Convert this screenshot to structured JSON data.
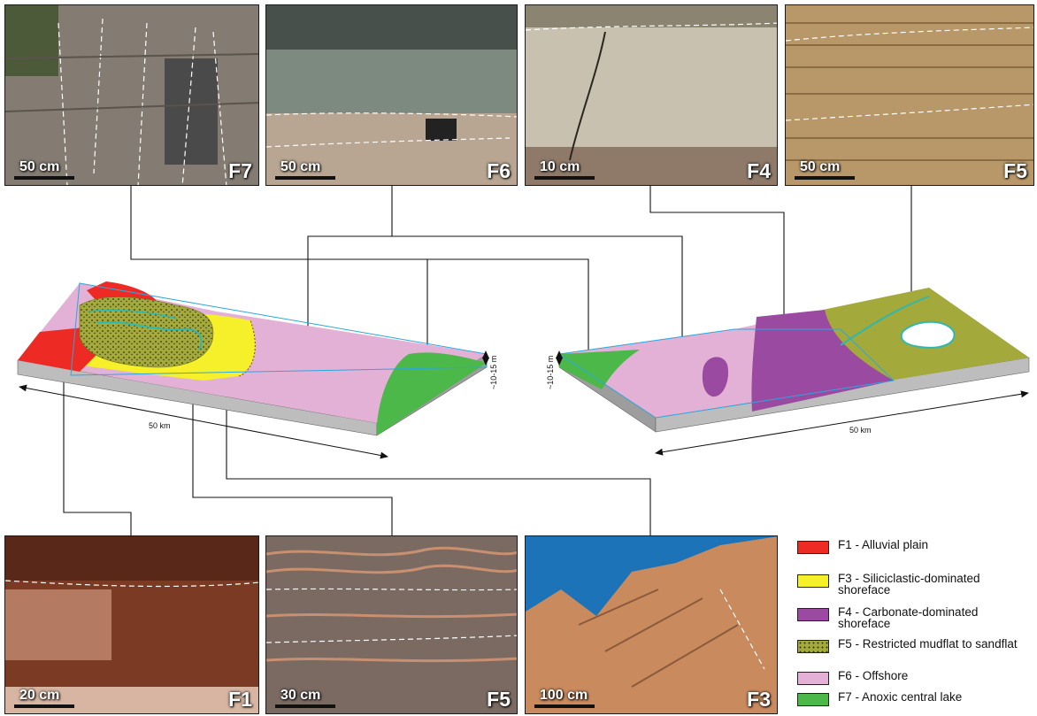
{
  "photos_top": [
    {
      "id": "F7",
      "scale": "50 cm"
    },
    {
      "id": "F6",
      "scale": "50 cm"
    },
    {
      "id": "F4",
      "scale": "10 cm"
    },
    {
      "id": "F5",
      "scale": "50 cm"
    }
  ],
  "photos_bottom": [
    {
      "id": "F1",
      "scale": "20 cm"
    },
    {
      "id": "F5",
      "scale": "30 cm"
    },
    {
      "id": "F3",
      "scale": "100 cm"
    }
  ],
  "diagram": {
    "left_block": {
      "width_label": "50 km",
      "depth_label": "~10-15 m"
    },
    "right_block": {
      "width_label": "50 km",
      "depth_label": "~10-15 m"
    }
  },
  "legend": [
    {
      "label": "F1 - Alluvial plain",
      "color": "#ee2a24"
    },
    {
      "label": "F3 - Siliciclastic-dominated shoreface",
      "color": "#f6f02a"
    },
    {
      "label": "F4 - Carbonate-dominated shoreface",
      "color": "#9a4aa0"
    },
    {
      "label": "F5 - Restricted mudflat to sandflat",
      "color": "#a4a93b"
    },
    {
      "label": "F6 - Offshore",
      "color": "#e2b1d5"
    },
    {
      "label": "F7 - Anoxic central lake",
      "color": "#4cb84a"
    }
  ]
}
